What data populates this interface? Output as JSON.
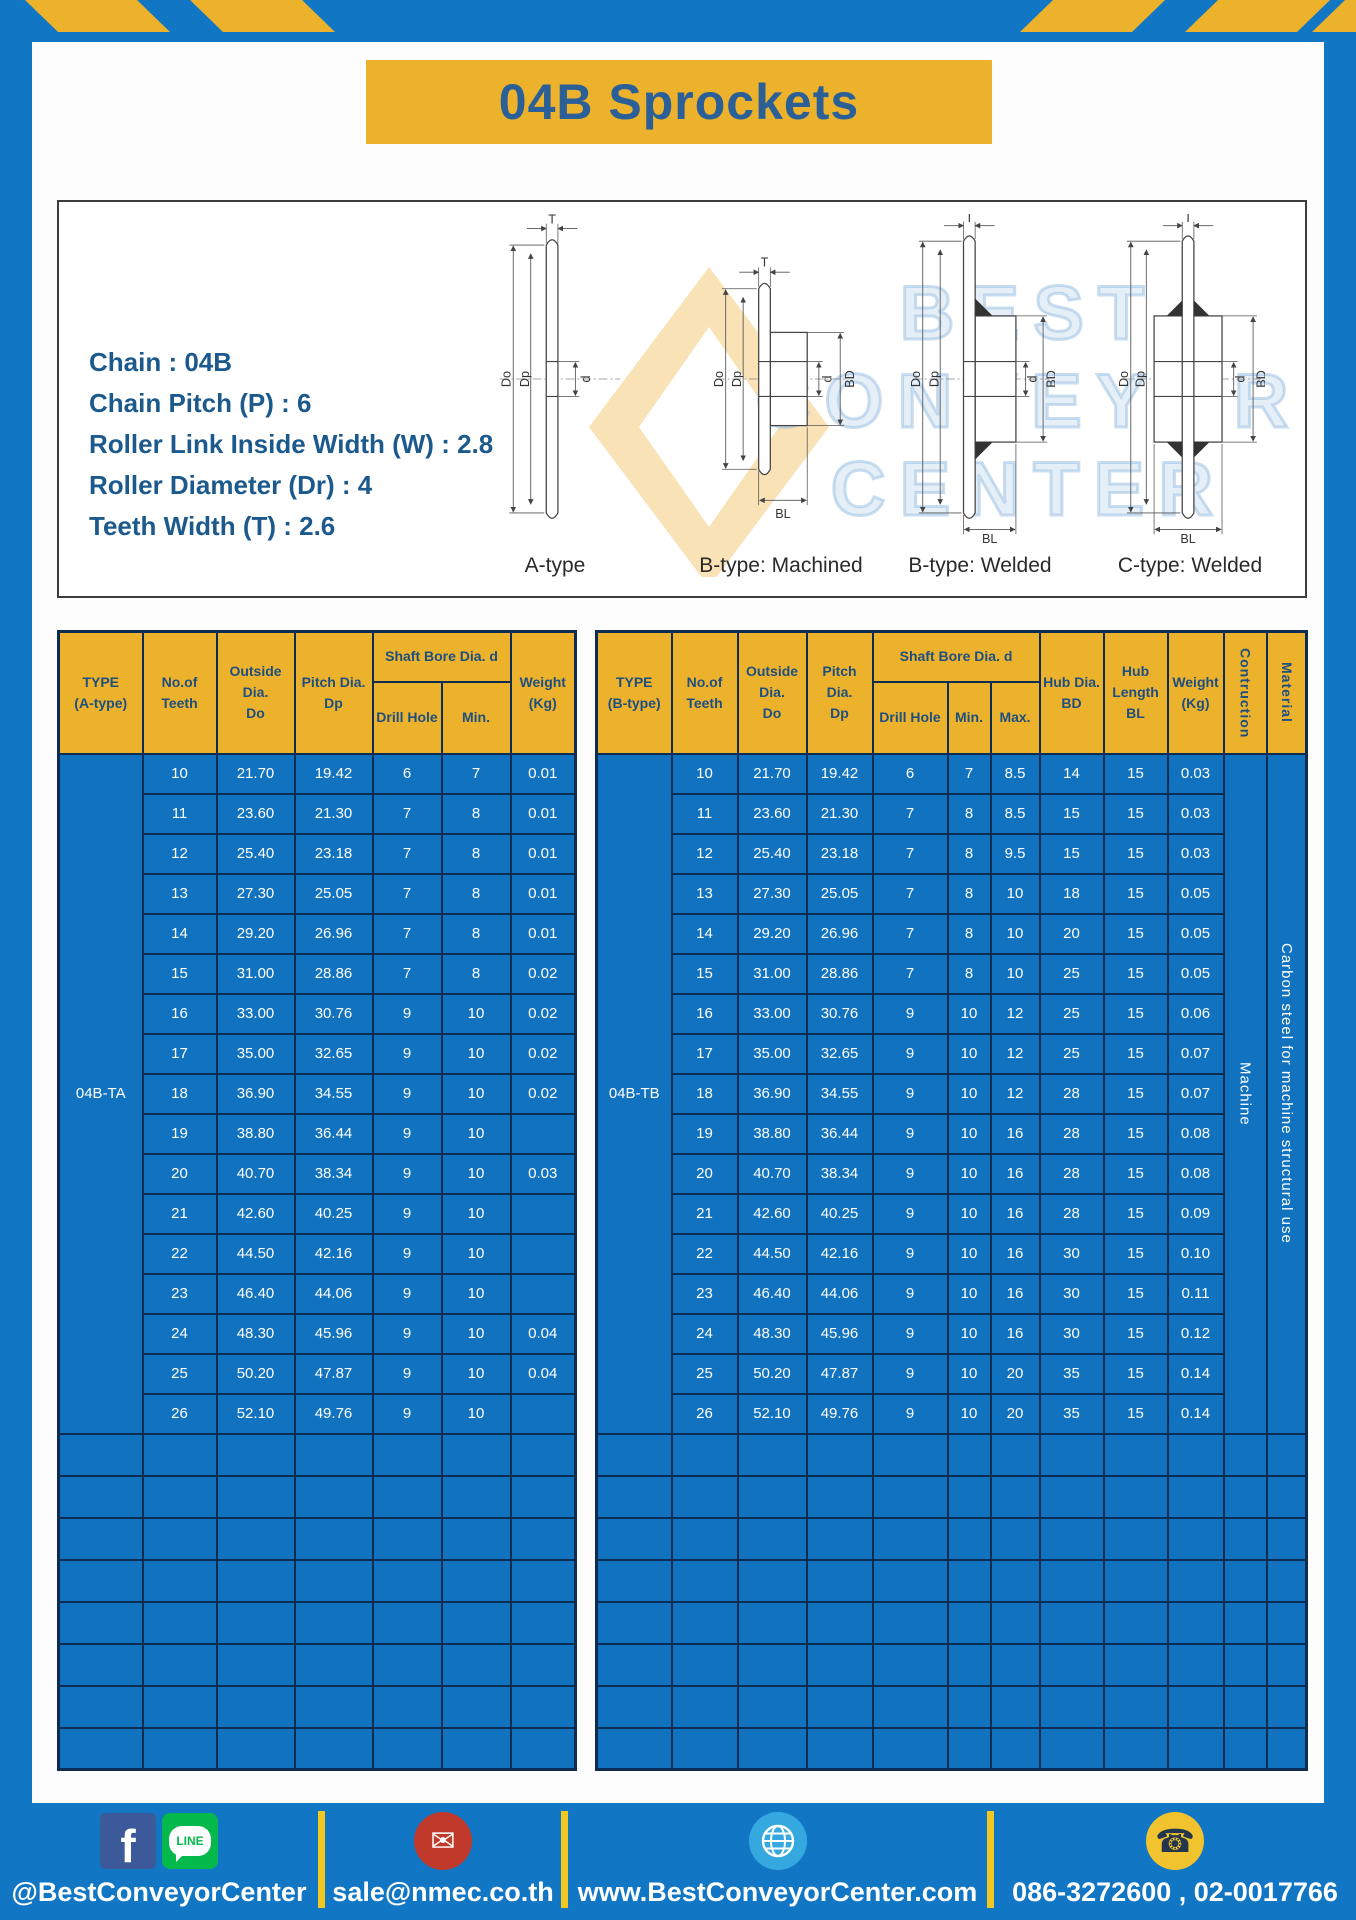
{
  "page": {
    "title": "04B Sprockets"
  },
  "colors": {
    "background_blue": "#1176c4",
    "banner_yellow": "#edb22c",
    "navy_text": "#1e4f80",
    "table_grid_navy": "#0d2c52",
    "table_cell_blue": "#1173c0",
    "footer_divider_yellow": "#f3c722"
  },
  "specs": {
    "lines": [
      "Chain : 04B",
      "Chain Pitch (P) : 6",
      "Roller Link Inside Width (W) : 2.8",
      "Roller Diameter (Dr) : 4",
      "Teeth Width (T) : 2.6"
    ]
  },
  "drawings": {
    "labels": [
      "A-type",
      "B-type: Machined",
      "B-type: Welded",
      "C-type: Welded"
    ],
    "dims": {
      "T": "T",
      "Do": "Do",
      "Dp": "Dp",
      "d": "d",
      "BD": "BD",
      "BL": "BL"
    },
    "watermark": [
      "BEST",
      "CONVEYOR",
      "CENTER"
    ]
  },
  "table_a": {
    "type_label": "04B-TA",
    "headers": {
      "type": "TYPE\n(A-type)",
      "teeth": "No.of\nTeeth",
      "outside": "Outside\nDia.\nDo",
      "pitch": "Pitch Dia.\nDp",
      "shaft": "Shaft Bore Dia. d",
      "drill": "Drill Hole",
      "min": "Min.",
      "weight": "Weight\n(Kg)"
    },
    "rows": [
      [
        "10",
        "21.70",
        "19.42",
        "6",
        "7",
        "0.01"
      ],
      [
        "11",
        "23.60",
        "21.30",
        "7",
        "8",
        "0.01"
      ],
      [
        "12",
        "25.40",
        "23.18",
        "7",
        "8",
        "0.01"
      ],
      [
        "13",
        "27.30",
        "25.05",
        "7",
        "8",
        "0.01"
      ],
      [
        "14",
        "29.20",
        "26.96",
        "7",
        "8",
        "0.01"
      ],
      [
        "15",
        "31.00",
        "28.86",
        "7",
        "8",
        "0.02"
      ],
      [
        "16",
        "33.00",
        "30.76",
        "9",
        "10",
        "0.02"
      ],
      [
        "17",
        "35.00",
        "32.65",
        "9",
        "10",
        "0.02"
      ],
      [
        "18",
        "36.90",
        "34.55",
        "9",
        "10",
        "0.02"
      ],
      [
        "19",
        "38.80",
        "36.44",
        "9",
        "10",
        ""
      ],
      [
        "20",
        "40.70",
        "38.34",
        "9",
        "10",
        "0.03"
      ],
      [
        "21",
        "42.60",
        "40.25",
        "9",
        "10",
        ""
      ],
      [
        "22",
        "44.50",
        "42.16",
        "9",
        "10",
        ""
      ],
      [
        "23",
        "46.40",
        "44.06",
        "9",
        "10",
        ""
      ],
      [
        "24",
        "48.30",
        "45.96",
        "9",
        "10",
        "0.04"
      ],
      [
        "25",
        "50.20",
        "47.87",
        "9",
        "10",
        "0.04"
      ],
      [
        "26",
        "52.10",
        "49.76",
        "9",
        "10",
        ""
      ]
    ],
    "empty_rows": 8
  },
  "table_b": {
    "type_label": "04B-TB",
    "construction": "Machine",
    "material": "Carbon steel for machine structural use",
    "headers": {
      "type": "TYPE\n(B-type)",
      "teeth": "No.of\nTeeth",
      "outside": "Outside\nDia.\nDo",
      "pitch": "Pitch Dia.\nDp",
      "shaft": "Shaft Bore Dia. d",
      "drill": "Drill Hole",
      "min": "Min.",
      "max": "Max.",
      "hub_dia": "Hub Dia.\nBD",
      "hub_len": "Hub\nLength\nBL",
      "weight": "Weight\n(Kg)",
      "construction": "Contruction",
      "material": "Material"
    },
    "rows": [
      [
        "10",
        "21.70",
        "19.42",
        "6",
        "7",
        "8.5",
        "14",
        "15",
        "0.03"
      ],
      [
        "11",
        "23.60",
        "21.30",
        "7",
        "8",
        "8.5",
        "15",
        "15",
        "0.03"
      ],
      [
        "12",
        "25.40",
        "23.18",
        "7",
        "8",
        "9.5",
        "15",
        "15",
        "0.03"
      ],
      [
        "13",
        "27.30",
        "25.05",
        "7",
        "8",
        "10",
        "18",
        "15",
        "0.05"
      ],
      [
        "14",
        "29.20",
        "26.96",
        "7",
        "8",
        "10",
        "20",
        "15",
        "0.05"
      ],
      [
        "15",
        "31.00",
        "28.86",
        "7",
        "8",
        "10",
        "25",
        "15",
        "0.05"
      ],
      [
        "16",
        "33.00",
        "30.76",
        "9",
        "10",
        "12",
        "25",
        "15",
        "0.06"
      ],
      [
        "17",
        "35.00",
        "32.65",
        "9",
        "10",
        "12",
        "25",
        "15",
        "0.07"
      ],
      [
        "18",
        "36.90",
        "34.55",
        "9",
        "10",
        "12",
        "28",
        "15",
        "0.07"
      ],
      [
        "19",
        "38.80",
        "36.44",
        "9",
        "10",
        "16",
        "28",
        "15",
        "0.08"
      ],
      [
        "20",
        "40.70",
        "38.34",
        "9",
        "10",
        "16",
        "28",
        "15",
        "0.08"
      ],
      [
        "21",
        "42.60",
        "40.25",
        "9",
        "10",
        "16",
        "28",
        "15",
        "0.09"
      ],
      [
        "22",
        "44.50",
        "42.16",
        "9",
        "10",
        "16",
        "30",
        "15",
        "0.10"
      ],
      [
        "23",
        "46.40",
        "44.06",
        "9",
        "10",
        "16",
        "30",
        "15",
        "0.11"
      ],
      [
        "24",
        "48.30",
        "45.96",
        "9",
        "10",
        "16",
        "30",
        "15",
        "0.12"
      ],
      [
        "25",
        "50.20",
        "47.87",
        "9",
        "10",
        "20",
        "35",
        "15",
        "0.14"
      ],
      [
        "26",
        "52.10",
        "49.76",
        "9",
        "10",
        "20",
        "35",
        "15",
        "0.14"
      ]
    ],
    "empty_rows": 8
  },
  "footer": {
    "social_handle": "@BestConveyorCenter",
    "email": "sale@nmec.co.th",
    "website": "www.BestConveyorCenter.com",
    "phones": "086-3272600 , 02-0017766",
    "icons": [
      "facebook-icon",
      "line-icon",
      "email-icon",
      "globe-icon",
      "phone-icon"
    ]
  }
}
